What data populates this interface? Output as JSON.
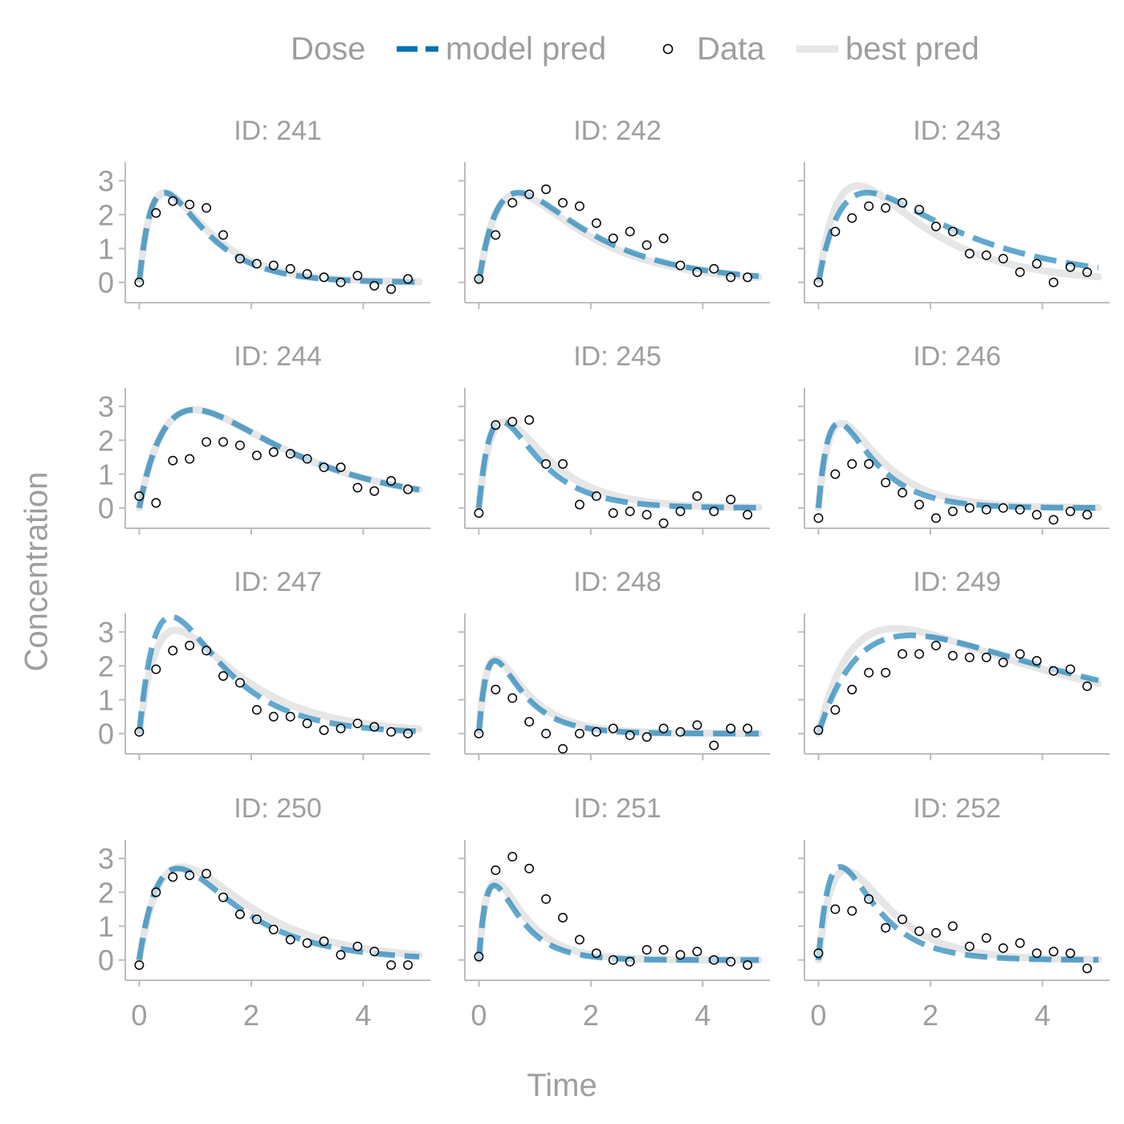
{
  "legend": {
    "title": "Dose",
    "entries": [
      {
        "label": "model pred",
        "color": "#0072B2",
        "style": "dashed"
      },
      {
        "label": "Data",
        "color": "#000000",
        "style": "open-circle"
      },
      {
        "label": "best pred",
        "color": "#e6e6e6",
        "style": "solid"
      }
    ]
  },
  "colors": {
    "model_pred": "#0072B2",
    "best_pred": "#e6e6e6",
    "text": "#9e9e9e",
    "axis": "#bdbdbd"
  },
  "axes": {
    "xlabel": "Time",
    "ylabel": "Concentration"
  },
  "chart_data": {
    "type": "line",
    "layout": "facet-grid 4 rows x 3 columns",
    "shared_x": true,
    "shared_y": true,
    "xlim": [
      -0.25,
      5.2
    ],
    "ylim": [
      -0.6,
      3.55
    ],
    "xticks": [
      0,
      2,
      4
    ],
    "yticks": [
      0,
      1,
      2,
      3
    ],
    "panels": [
      {
        "title": "ID: 241",
        "model": {
          "ka": 3.5,
          "ke": 1.3,
          "peak": 2.65
        },
        "best": {
          "ka": 3.5,
          "ke": 1.2,
          "peak": 2.65
        },
        "data": {
          "x": [
            0,
            0.3,
            0.6,
            0.9,
            1.2,
            1.5,
            1.8,
            2.1,
            2.4,
            2.7,
            3.0,
            3.3,
            3.6,
            3.9,
            4.2,
            4.5,
            4.8
          ],
          "y": [
            0.0,
            2.05,
            2.4,
            2.3,
            2.2,
            1.4,
            0.7,
            0.55,
            0.5,
            0.4,
            0.25,
            0.15,
            0.0,
            0.2,
            -0.1,
            -0.2,
            0.1
          ]
        }
      },
      {
        "title": "ID: 242",
        "model": {
          "ka": 2.5,
          "ke": 0.7,
          "peak": 2.65
        },
        "best": {
          "ka": 2.5,
          "ke": 0.75,
          "peak": 2.6
        },
        "data": {
          "x": [
            0,
            0.3,
            0.6,
            0.9,
            1.2,
            1.5,
            1.8,
            2.1,
            2.4,
            2.7,
            3.0,
            3.3,
            3.6,
            3.9,
            4.2,
            4.5,
            4.8
          ],
          "y": [
            0.1,
            1.4,
            2.35,
            2.6,
            2.75,
            2.35,
            2.25,
            1.75,
            1.3,
            1.5,
            1.1,
            1.3,
            0.5,
            0.3,
            0.4,
            0.15,
            0.15
          ]
        }
      },
      {
        "title": "ID: 243",
        "model": {
          "ka": 2.2,
          "ke": 0.5,
          "peak": 2.65
        },
        "best": {
          "ka": 2.4,
          "ke": 0.75,
          "peak": 2.85
        },
        "data": {
          "x": [
            0,
            0.3,
            0.6,
            0.9,
            1.2,
            1.5,
            1.8,
            2.1,
            2.4,
            2.7,
            3.0,
            3.3,
            3.6,
            3.9,
            4.2,
            4.5,
            4.8
          ],
          "y": [
            0.0,
            1.5,
            1.9,
            2.25,
            2.2,
            2.35,
            2.15,
            1.65,
            1.5,
            0.85,
            0.8,
            0.7,
            0.3,
            0.55,
            0.0,
            0.45,
            0.3
          ]
        }
      },
      {
        "title": "ID: 244",
        "model": {
          "ka": 1.8,
          "ke": 0.5,
          "peak": 2.9
        },
        "best": {
          "ka": 1.8,
          "ke": 0.5,
          "peak": 2.9
        },
        "data": {
          "x": [
            0,
            0.3,
            0.6,
            0.9,
            1.2,
            1.5,
            1.8,
            2.1,
            2.4,
            2.7,
            3.0,
            3.3,
            3.6,
            3.9,
            4.2,
            4.5,
            4.8
          ],
          "y": [
            0.35,
            0.15,
            1.4,
            1.45,
            1.95,
            1.95,
            1.85,
            1.55,
            1.65,
            1.6,
            1.45,
            1.2,
            1.2,
            0.6,
            0.5,
            0.8,
            0.55
          ]
        }
      },
      {
        "title": "ID: 245",
        "model": {
          "ka": 4.0,
          "ke": 1.4,
          "peak": 2.55
        },
        "best": {
          "ka": 3.5,
          "ke": 1.2,
          "peak": 2.55
        },
        "data": {
          "x": [
            0,
            0.3,
            0.6,
            0.9,
            1.2,
            1.5,
            1.8,
            2.1,
            2.4,
            2.7,
            3.0,
            3.3,
            3.6,
            3.9,
            4.2,
            4.5,
            4.8
          ],
          "y": [
            -0.15,
            2.45,
            2.55,
            2.6,
            1.3,
            1.3,
            0.1,
            0.35,
            -0.15,
            -0.1,
            -0.2,
            -0.45,
            -0.1,
            0.35,
            -0.1,
            0.25,
            -0.2
          ]
        }
      },
      {
        "title": "ID: 246",
        "model": {
          "ka": 4.5,
          "ke": 1.5,
          "peak": 2.5
        },
        "best": {
          "ka": 4.0,
          "ke": 1.3,
          "peak": 2.5
        },
        "data": {
          "x": [
            0,
            0.3,
            0.6,
            0.9,
            1.2,
            1.5,
            1.8,
            2.1,
            2.4,
            2.7,
            3.0,
            3.3,
            3.6,
            3.9,
            4.2,
            4.5,
            4.8
          ],
          "y": [
            -0.3,
            1.0,
            1.3,
            1.3,
            0.75,
            0.45,
            0.1,
            -0.3,
            -0.1,
            0.0,
            -0.05,
            0.0,
            -0.05,
            -0.2,
            -0.35,
            -0.1,
            -0.2
          ]
        }
      },
      {
        "title": "ID: 247",
        "model": {
          "ka": 2.8,
          "ke": 1.0,
          "peak": 3.45
        },
        "best": {
          "ka": 2.6,
          "ke": 0.8,
          "peak": 3.05
        },
        "data": {
          "x": [
            0,
            0.3,
            0.6,
            0.9,
            1.2,
            1.5,
            1.8,
            2.1,
            2.4,
            2.7,
            3.0,
            3.3,
            3.6,
            3.9,
            4.2,
            4.5,
            4.8
          ],
          "y": [
            0.05,
            1.9,
            2.45,
            2.6,
            2.45,
            1.7,
            1.5,
            0.7,
            0.5,
            0.5,
            0.3,
            0.1,
            0.15,
            0.3,
            0.2,
            0.05,
            0.0
          ]
        }
      },
      {
        "title": "ID: 248",
        "model": {
          "ka": 6.0,
          "ke": 1.8,
          "peak": 2.15
        },
        "best": {
          "ka": 6.0,
          "ke": 1.6,
          "peak": 2.2
        },
        "data": {
          "x": [
            0,
            0.3,
            0.6,
            0.9,
            1.2,
            1.5,
            1.8,
            2.1,
            2.4,
            2.7,
            3.0,
            3.3,
            3.6,
            3.9,
            4.2,
            4.5,
            4.8
          ],
          "y": [
            0.0,
            1.3,
            1.05,
            0.35,
            0.0,
            -0.45,
            0.0,
            0.05,
            0.15,
            -0.05,
            -0.1,
            0.15,
            0.05,
            0.25,
            -0.35,
            0.15,
            0.15
          ]
        }
      },
      {
        "title": "ID: 249",
        "model": {
          "ka": 1.2,
          "ke": 0.25,
          "peak": 2.9
        },
        "best": {
          "ka": 1.6,
          "ke": 0.25,
          "peak": 3.1
        },
        "data": {
          "x": [
            0,
            0.3,
            0.6,
            0.9,
            1.2,
            1.5,
            1.8,
            2.1,
            2.4,
            2.7,
            3.0,
            3.3,
            3.6,
            3.9,
            4.2,
            4.5,
            4.8
          ],
          "y": [
            0.1,
            0.7,
            1.3,
            1.8,
            1.8,
            2.35,
            2.35,
            2.6,
            2.3,
            2.25,
            2.25,
            2.1,
            2.35,
            2.15,
            1.85,
            1.9,
            1.4
          ]
        }
      },
      {
        "title": "ID: 250",
        "model": {
          "ka": 2.2,
          "ke": 0.9,
          "peak": 2.7
        },
        "best": {
          "ka": 2.0,
          "ke": 0.8,
          "peak": 2.75
        },
        "data": {
          "x": [
            0,
            0.3,
            0.6,
            0.9,
            1.2,
            1.5,
            1.8,
            2.1,
            2.4,
            2.7,
            3.0,
            3.3,
            3.6,
            3.9,
            4.2,
            4.5,
            4.8
          ],
          "y": [
            -0.15,
            2.0,
            2.45,
            2.5,
            2.55,
            1.85,
            1.35,
            1.2,
            0.9,
            0.6,
            0.5,
            0.55,
            0.15,
            0.4,
            0.25,
            -0.15,
            -0.15
          ]
        }
      },
      {
        "title": "ID: 251",
        "model": {
          "ka": 6.0,
          "ke": 2.0,
          "peak": 2.2
        },
        "best": {
          "ka": 5.5,
          "ke": 1.8,
          "peak": 2.3
        },
        "data": {
          "x": [
            0,
            0.3,
            0.6,
            0.9,
            1.2,
            1.5,
            1.8,
            2.1,
            2.4,
            2.7,
            3.0,
            3.3,
            3.6,
            3.9,
            4.2,
            4.5,
            4.8
          ],
          "y": [
            0.1,
            2.65,
            3.05,
            2.7,
            1.8,
            1.25,
            0.6,
            0.2,
            0.0,
            -0.05,
            0.3,
            0.3,
            0.15,
            0.25,
            0.0,
            -0.05,
            -0.15
          ]
        }
      },
      {
        "title": "ID: 252",
        "model": {
          "ka": 4.0,
          "ke": 1.5,
          "peak": 2.75
        },
        "best": {
          "ka": 3.0,
          "ke": 1.3,
          "peak": 2.65
        },
        "data": {
          "x": [
            0,
            0.3,
            0.6,
            0.9,
            1.2,
            1.5,
            1.8,
            2.1,
            2.4,
            2.7,
            3.0,
            3.3,
            3.6,
            3.9,
            4.2,
            4.5,
            4.8
          ],
          "y": [
            0.2,
            1.5,
            1.45,
            1.8,
            0.95,
            1.2,
            0.85,
            0.8,
            1.0,
            0.4,
            0.65,
            0.35,
            0.5,
            0.2,
            0.25,
            0.2,
            -0.25
          ]
        }
      }
    ]
  }
}
